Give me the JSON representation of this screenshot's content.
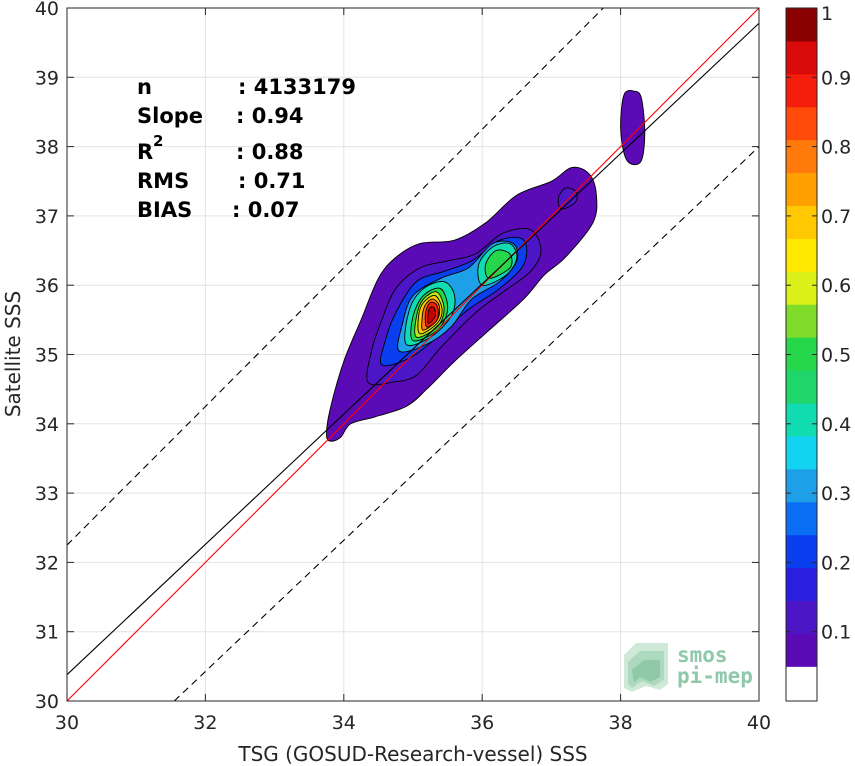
{
  "chart_data": {
    "type": "heatmap",
    "subtype": "density-contour-scatter",
    "xlabel": "TSG (GOSUD-Research-vessel) SSS",
    "ylabel": "Satellite SSS",
    "xlim": [
      30,
      40
    ],
    "ylim": [
      30,
      40
    ],
    "x_ticks": [
      "30",
      "32",
      "34",
      "36",
      "38",
      "40"
    ],
    "y_ticks": [
      "30",
      "31",
      "32",
      "33",
      "34",
      "35",
      "36",
      "37",
      "38",
      "39",
      "40"
    ],
    "grid": true,
    "stats": {
      "n_label": "n",
      "n_value": ": 4133179",
      "slope_label": "Slope",
      "slope_value": ": 0.94",
      "r2_label": "R",
      "r2_sup": "2",
      "r2_value": ": 0.88",
      "rms_label": "RMS",
      "rms_value": ": 0.71",
      "bias_label": "BIAS",
      "bias_value": ": 0.07"
    },
    "lines": [
      {
        "role": "identity",
        "color": "#ff0000",
        "style": "solid",
        "points": [
          [
            30,
            30
          ],
          [
            40,
            40
          ]
        ]
      },
      {
        "role": "regression",
        "color": "#000000",
        "style": "solid",
        "points": [
          [
            30,
            30.38
          ],
          [
            40,
            39.78
          ]
        ]
      },
      {
        "role": "upper-bound",
        "color": "#000000",
        "style": "dashed",
        "points": [
          [
            30,
            32.25
          ],
          [
            40,
            42.25
          ]
        ]
      },
      {
        "role": "lower-bound",
        "color": "#000000",
        "style": "dashed",
        "points": [
          [
            31.55,
            30
          ],
          [
            40,
            38.0
          ]
        ]
      }
    ],
    "density_levels": [
      {
        "level": 0.05,
        "color": "#5a0bb5",
        "polygon": [
          [
            33.8,
            33.75
          ],
          [
            33.95,
            33.8
          ],
          [
            34.1,
            34.0
          ],
          [
            34.45,
            34.1
          ],
          [
            34.9,
            34.25
          ],
          [
            35.2,
            34.5
          ],
          [
            35.6,
            34.9
          ],
          [
            36.1,
            35.35
          ],
          [
            36.6,
            35.8
          ],
          [
            36.9,
            36.15
          ],
          [
            37.2,
            36.4
          ],
          [
            37.6,
            36.9
          ],
          [
            37.65,
            37.3
          ],
          [
            37.55,
            37.6
          ],
          [
            37.3,
            37.7
          ],
          [
            37.0,
            37.5
          ],
          [
            36.5,
            37.3
          ],
          [
            36.05,
            36.9
          ],
          [
            35.6,
            36.65
          ],
          [
            35.1,
            36.6
          ],
          [
            34.75,
            36.4
          ],
          [
            34.5,
            36.1
          ],
          [
            34.25,
            35.5
          ],
          [
            34.0,
            34.9
          ],
          [
            33.8,
            34.2
          ],
          [
            33.75,
            33.85
          ]
        ]
      },
      {
        "level": 0.05,
        "color": "#5a0bb5",
        "polygon": [
          [
            38.15,
            37.75
          ],
          [
            38.3,
            37.8
          ],
          [
            38.35,
            38.2
          ],
          [
            38.3,
            38.7
          ],
          [
            38.2,
            38.8
          ],
          [
            38.05,
            38.75
          ],
          [
            38.0,
            38.3
          ],
          [
            38.05,
            37.9
          ]
        ]
      },
      {
        "level": 0.1,
        "color": "#4c16c7",
        "polygon": [
          [
            34.35,
            34.6
          ],
          [
            34.7,
            34.6
          ],
          [
            35.05,
            34.7
          ],
          [
            35.4,
            35.1
          ],
          [
            35.9,
            35.6
          ],
          [
            36.3,
            35.9
          ],
          [
            36.7,
            36.2
          ],
          [
            36.85,
            36.5
          ],
          [
            36.7,
            36.8
          ],
          [
            36.3,
            36.75
          ],
          [
            35.9,
            36.45
          ],
          [
            35.5,
            36.35
          ],
          [
            35.1,
            36.25
          ],
          [
            34.75,
            35.95
          ],
          [
            34.55,
            35.5
          ],
          [
            34.4,
            35.05
          ]
        ]
      },
      {
        "level": 0.1,
        "color": "#4c16c7",
        "polygon": [
          [
            37.15,
            37.1
          ],
          [
            37.35,
            37.2
          ],
          [
            37.35,
            37.35
          ],
          [
            37.2,
            37.4
          ],
          [
            37.1,
            37.25
          ]
        ]
      },
      {
        "level": 0.2,
        "color": "#0a3ff0",
        "polygon": [
          [
            34.55,
            34.85
          ],
          [
            34.95,
            34.95
          ],
          [
            35.35,
            35.25
          ],
          [
            35.8,
            35.65
          ],
          [
            36.25,
            35.95
          ],
          [
            36.6,
            36.3
          ],
          [
            36.6,
            36.65
          ],
          [
            36.25,
            36.65
          ],
          [
            35.85,
            36.35
          ],
          [
            35.45,
            36.2
          ],
          [
            35.05,
            36.05
          ],
          [
            34.75,
            35.6
          ],
          [
            34.6,
            35.2
          ]
        ]
      },
      {
        "level": 0.3,
        "color": "#1ea0e8",
        "polygon": [
          [
            34.8,
            35.05
          ],
          [
            35.2,
            35.15
          ],
          [
            35.55,
            35.4
          ],
          [
            35.85,
            35.8
          ],
          [
            36.25,
            36.05
          ],
          [
            36.5,
            36.35
          ],
          [
            36.45,
            36.6
          ],
          [
            36.15,
            36.6
          ],
          [
            35.8,
            36.25
          ],
          [
            35.4,
            36.1
          ],
          [
            35.0,
            35.85
          ],
          [
            34.85,
            35.45
          ]
        ]
      },
      {
        "level": 0.4,
        "color": "#11dbb1",
        "polygon": [
          [
            34.9,
            35.15
          ],
          [
            35.25,
            35.25
          ],
          [
            35.55,
            35.55
          ],
          [
            35.6,
            35.85
          ],
          [
            35.45,
            36.05
          ],
          [
            35.15,
            35.95
          ],
          [
            34.95,
            35.65
          ]
        ]
      },
      {
        "level": 0.4,
        "color": "#11dbb1",
        "polygon": [
          [
            36.0,
            36.0
          ],
          [
            36.35,
            36.15
          ],
          [
            36.5,
            36.4
          ],
          [
            36.4,
            36.6
          ],
          [
            36.15,
            36.55
          ],
          [
            35.95,
            36.3
          ]
        ]
      },
      {
        "level": 0.5,
        "color": "#26d64b",
        "polygon": [
          [
            35.0,
            35.2
          ],
          [
            35.35,
            35.35
          ],
          [
            35.5,
            35.65
          ],
          [
            35.4,
            35.95
          ],
          [
            35.15,
            35.85
          ],
          [
            35.0,
            35.55
          ]
        ]
      },
      {
        "level": 0.5,
        "color": "#26d64b",
        "polygon": [
          [
            36.1,
            36.1
          ],
          [
            36.4,
            36.25
          ],
          [
            36.4,
            36.45
          ],
          [
            36.2,
            36.5
          ],
          [
            36.05,
            36.3
          ]
        ]
      },
      {
        "level": 0.6,
        "color": "#b6e81a",
        "polygon": [
          [
            35.05,
            35.25
          ],
          [
            35.35,
            35.4
          ],
          [
            35.45,
            35.65
          ],
          [
            35.35,
            35.9
          ],
          [
            35.15,
            35.8
          ],
          [
            35.05,
            35.55
          ]
        ]
      },
      {
        "level": 0.7,
        "color": "#ffc800",
        "polygon": [
          [
            35.1,
            35.3
          ],
          [
            35.35,
            35.45
          ],
          [
            35.42,
            35.65
          ],
          [
            35.32,
            35.85
          ],
          [
            35.15,
            35.75
          ],
          [
            35.08,
            35.55
          ]
        ]
      },
      {
        "level": 0.8,
        "color": "#ff7a0a",
        "polygon": [
          [
            35.15,
            35.35
          ],
          [
            35.35,
            35.5
          ],
          [
            35.38,
            35.7
          ],
          [
            35.28,
            35.8
          ],
          [
            35.17,
            35.7
          ],
          [
            35.13,
            35.5
          ]
        ]
      },
      {
        "level": 0.9,
        "color": "#f51d0b",
        "polygon": [
          [
            35.2,
            35.4
          ],
          [
            35.35,
            35.5
          ],
          [
            35.35,
            35.7
          ],
          [
            35.25,
            35.75
          ],
          [
            35.18,
            35.6
          ]
        ]
      },
      {
        "level": 1.0,
        "color": "#c40000",
        "polygon": [
          [
            35.22,
            35.45
          ],
          [
            35.32,
            35.55
          ],
          [
            35.3,
            35.68
          ],
          [
            35.23,
            35.65
          ]
        ]
      }
    ],
    "colorbar": {
      "ticks": [
        "0.1",
        "0.2",
        "0.3",
        "0.4",
        "0.5",
        "0.6",
        "0.7",
        "0.8",
        "0.9",
        "1"
      ],
      "tick_values": [
        0.1,
        0.2,
        0.3,
        0.4,
        0.5,
        0.6,
        0.7,
        0.8,
        0.9,
        1.0
      ],
      "range": [
        0,
        1
      ],
      "bottom_band_color": "#ffffff",
      "band_colors": [
        "#5a0bb5",
        "#4c16c7",
        "#2a1fe0",
        "#0a3ff0",
        "#0a6ef5",
        "#1ea0e8",
        "#12d4f0",
        "#11dbb1",
        "#1ed66a",
        "#26d64b",
        "#7fdd2a",
        "#dcf01a",
        "#ffe800",
        "#ffc800",
        "#ffa000",
        "#ff7a0a",
        "#ff4a0a",
        "#f51d0b",
        "#d90a0a",
        "#8b0000"
      ]
    },
    "logo": {
      "line1": "smos",
      "line2": "pi-mep"
    }
  }
}
